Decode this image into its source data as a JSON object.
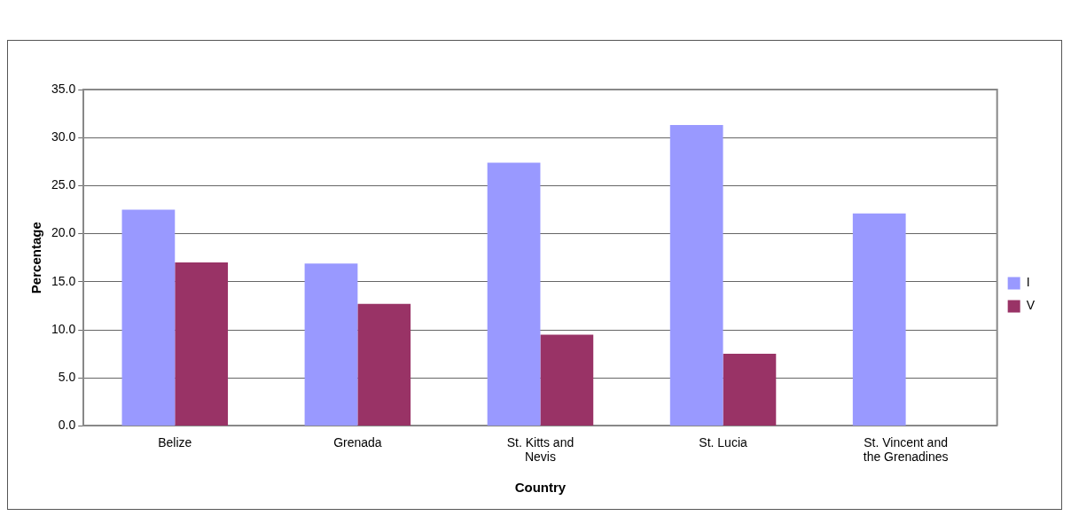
{
  "chart_data": {
    "type": "bar",
    "xlabel": "Country",
    "ylabel": "Percentage",
    "categories": [
      "Belize",
      "Grenada",
      "St. Kitts and Nevis",
      "St. Lucia",
      "St. Vincent and the Grenadines"
    ],
    "series": [
      {
        "name": "I",
        "color": "#9999ff",
        "values": [
          22.5,
          16.9,
          27.4,
          31.3,
          22.1
        ]
      },
      {
        "name": "V",
        "color": "#993366",
        "values": [
          17.0,
          12.7,
          9.5,
          7.5,
          null
        ]
      }
    ],
    "ylim": [
      0,
      35
    ],
    "yticks": [
      {
        "value": 0,
        "label": "0.0"
      },
      {
        "value": 5,
        "label": "5.0"
      },
      {
        "value": 10,
        "label": "10.0"
      },
      {
        "value": 15,
        "label": "15.0"
      },
      {
        "value": 20,
        "label": "20.0"
      },
      {
        "value": 25,
        "label": "25.0"
      },
      {
        "value": 30,
        "label": "30.0"
      },
      {
        "value": 35,
        "label": "35.0"
      }
    ],
    "grid": "y",
    "legend": "right"
  }
}
